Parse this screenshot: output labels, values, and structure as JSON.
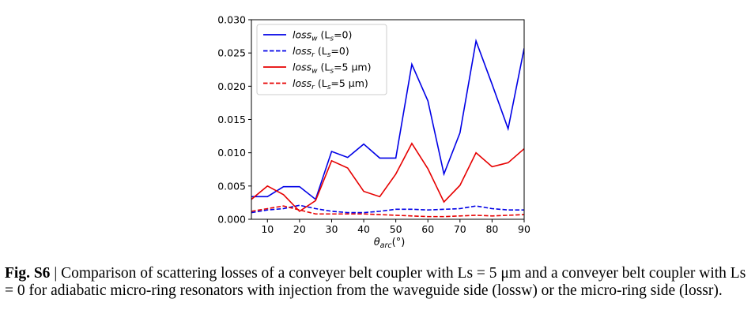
{
  "chart_data": {
    "type": "line",
    "title": "",
    "xlabel": "θarc(°)",
    "ylabel": "",
    "xlim": [
      5,
      90
    ],
    "ylim": [
      0,
      0.03
    ],
    "x_ticks": [
      10,
      20,
      30,
      40,
      50,
      60,
      70,
      80,
      90
    ],
    "y_ticks": [
      "0.000",
      "0.005",
      "0.010",
      "0.015",
      "0.020",
      "0.025",
      "0.030"
    ],
    "grid": false,
    "legend_position": "top-left",
    "x": [
      5,
      10,
      15,
      20,
      25,
      30,
      35,
      40,
      45,
      50,
      55,
      60,
      65,
      70,
      75,
      80,
      85,
      90
    ],
    "series": [
      {
        "name": "lossw (Ls=0)",
        "color": "#0000e6",
        "style": "solid",
        "values": [
          0.0034,
          0.0034,
          0.0049,
          0.0049,
          0.003,
          0.0102,
          0.0093,
          0.0113,
          0.0092,
          0.0092,
          0.0233,
          0.0178,
          0.0068,
          0.013,
          0.0268,
          0.0203,
          0.0136,
          0.0257
        ]
      },
      {
        "name": "lossr (Ls=0)",
        "color": "#0000e6",
        "style": "dashed",
        "values": [
          0.001,
          0.0014,
          0.0016,
          0.0021,
          0.0016,
          0.0012,
          0.001,
          0.001,
          0.0012,
          0.0015,
          0.0015,
          0.0014,
          0.0015,
          0.0016,
          0.002,
          0.0016,
          0.0014,
          0.0014
        ]
      },
      {
        "name": "lossw (Ls=5 μm)",
        "color": "#e60000",
        "style": "solid",
        "values": [
          0.003,
          0.005,
          0.0037,
          0.0012,
          0.0028,
          0.0088,
          0.0077,
          0.0042,
          0.0034,
          0.0068,
          0.0114,
          0.0076,
          0.0026,
          0.0051,
          0.01,
          0.0079,
          0.0085,
          0.0106
        ]
      },
      {
        "name": "lossr (Ls=5 μm)",
        "color": "#e60000",
        "style": "dashed",
        "values": [
          0.0012,
          0.0016,
          0.002,
          0.0014,
          0.0008,
          0.0008,
          0.0008,
          0.0008,
          0.0007,
          0.0006,
          0.0005,
          0.0004,
          0.0004,
          0.0005,
          0.0006,
          0.0005,
          0.0006,
          0.0007
        ]
      }
    ]
  },
  "legend": [
    {
      "base": "loss",
      "sub": "w",
      "paren_open": " (L",
      "paren_sub": "s",
      "paren_rest": "=0)"
    },
    {
      "base": "loss",
      "sub": "r",
      "paren_open": " (L",
      "paren_sub": "s",
      "paren_rest": "=0)"
    },
    {
      "base": "loss",
      "sub": "w",
      "paren_open": " (L",
      "paren_sub": "s",
      "paren_rest": "=5 μm)"
    },
    {
      "base": "loss",
      "sub": "r",
      "paren_open": " (L",
      "paren_sub": "s",
      "paren_rest": "=5 μm)"
    }
  ],
  "axis": {
    "x_symbol": "θ",
    "x_sub": "arc",
    "x_unit": "(°)"
  },
  "caption": {
    "fig_no": "Fig. S6",
    "text": " | Comparison of scattering losses of a conveyer belt coupler with Ls = 5 μm and a conveyer belt coupler with Ls = 0 for adiabatic micro-ring resonators with injection from the waveguide side (lossw) or the micro-ring side (lossr)."
  }
}
